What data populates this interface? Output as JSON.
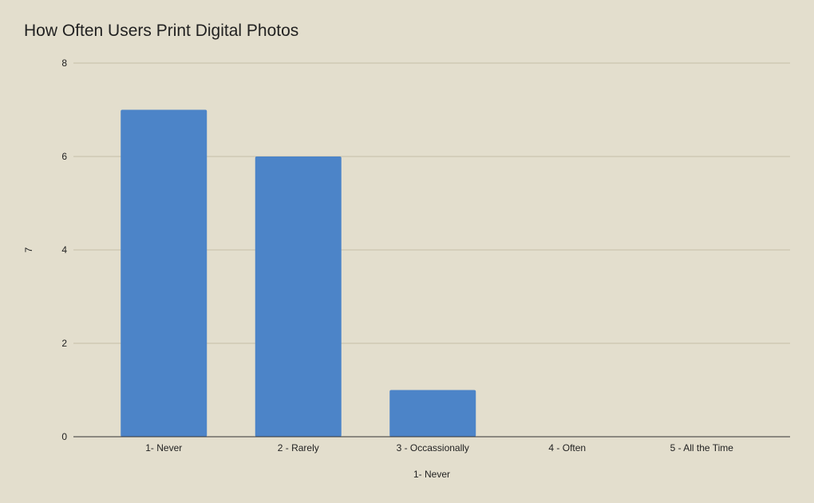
{
  "chart_data": {
    "type": "bar",
    "title": "How Often Users Print Digital Photos",
    "categories": [
      "1- Never",
      "2 - Rarely",
      "3 - Occassionally",
      "4 - Often",
      "5 - All the Time"
    ],
    "series": [
      {
        "values": [
          7,
          6,
          1,
          0,
          0
        ]
      }
    ],
    "xlabel": "1- Never",
    "ylabel": "7",
    "ylim": [
      0,
      8
    ],
    "yticks": [
      0,
      2,
      4,
      6,
      8
    ],
    "grid": true,
    "legend": "none",
    "colors": {
      "bar": "#4c84c8",
      "grid": "#c5bfa8",
      "axis": "#333333",
      "background": "#e3decd"
    }
  }
}
